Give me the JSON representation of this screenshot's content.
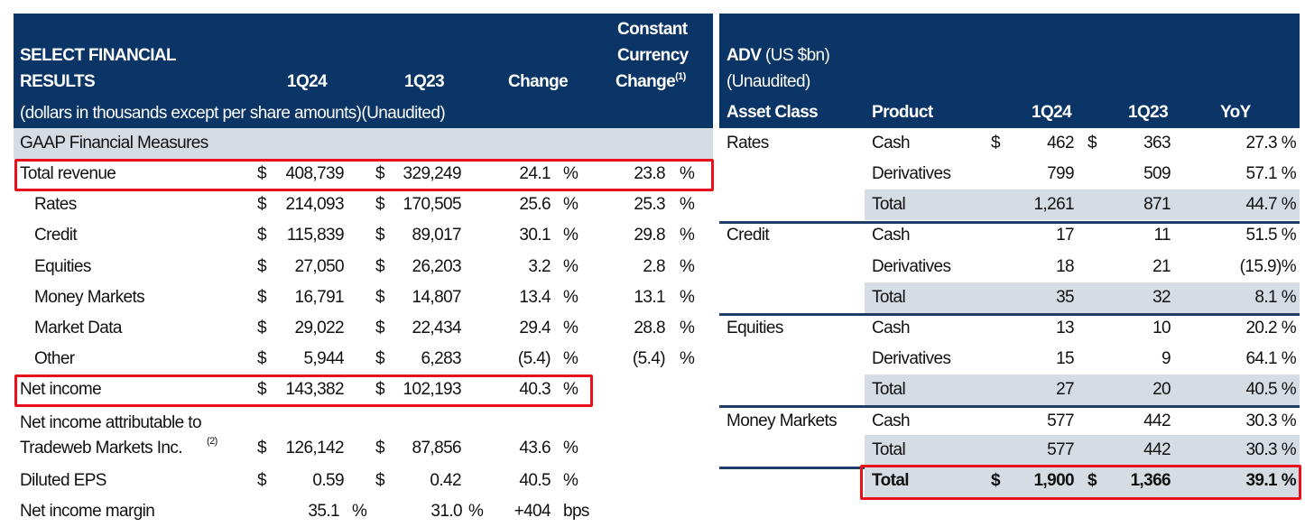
{
  "colors": {
    "header_bg": "#0b3566",
    "band_bg": "#d6dce4",
    "highlight": "#e8101a",
    "rule": "#1f3d66"
  },
  "left": {
    "title_line1": "SELECT FINANCIAL",
    "title_line2": "RESULTS",
    "col_1q24": "1Q24",
    "col_1q23": "1Q23",
    "col_change": "Change",
    "col_cc_line1": "Constant",
    "col_cc_line2": "Currency",
    "col_cc_line3": "Change",
    "col_cc_footnote": "(1)",
    "subtitle": "(dollars in thousands except per share amounts)(Unaudited)",
    "section": "GAAP Financial Measures",
    "rows": [
      {
        "label": "Total revenue",
        "indent": false,
        "d1": "$",
        "v1": "408,739",
        "d2": "$",
        "v2": "329,249",
        "chg": "24.1",
        "chg_unit": "%",
        "cc": "23.8",
        "cc_unit": "%",
        "highlight": true
      },
      {
        "label": "Rates",
        "indent": true,
        "d1": "$",
        "v1": "214,093",
        "d2": "$",
        "v2": "170,505",
        "chg": "25.6",
        "chg_unit": "%",
        "cc": "25.3",
        "cc_unit": "%"
      },
      {
        "label": "Credit",
        "indent": true,
        "d1": "$",
        "v1": "115,839",
        "d2": "$",
        "v2": "89,017",
        "chg": "30.1",
        "chg_unit": "%",
        "cc": "29.8",
        "cc_unit": "%"
      },
      {
        "label": "Equities",
        "indent": true,
        "d1": "$",
        "v1": "27,050",
        "d2": "$",
        "v2": "26,203",
        "chg": "3.2",
        "chg_unit": "%",
        "cc": "2.8",
        "cc_unit": "%"
      },
      {
        "label": "Money Markets",
        "indent": true,
        "d1": "$",
        "v1": "16,791",
        "d2": "$",
        "v2": "14,807",
        "chg": "13.4",
        "chg_unit": "%",
        "cc": "13.1",
        "cc_unit": "%"
      },
      {
        "label": "Market Data",
        "indent": true,
        "d1": "$",
        "v1": "29,022",
        "d2": "$",
        "v2": "22,434",
        "chg": "29.4",
        "chg_unit": "%",
        "cc": "28.8",
        "cc_unit": "%"
      },
      {
        "label": "Other",
        "indent": true,
        "d1": "$",
        "v1": "5,944",
        "d2": "$",
        "v2": "6,283",
        "chg": "(5.4)",
        "chg_unit": "%",
        "cc": "(5.4)",
        "cc_unit": "%"
      },
      {
        "label": "Net income",
        "indent": false,
        "d1": "$",
        "v1": "143,382",
        "d2": "$",
        "v2": "102,193",
        "chg": "40.3",
        "chg_unit": "%",
        "highlight": true
      },
      {
        "label": "Net income attributable to",
        "label2": "Tradeweb Markets Inc.",
        "footnote": "(2)",
        "indent": false,
        "d1": "$",
        "v1": "126,142",
        "d2": "$",
        "v2": "87,856",
        "chg": "43.6",
        "chg_unit": "%"
      },
      {
        "label": "Diluted EPS",
        "indent": false,
        "d1": "$",
        "v1": "0.59",
        "d2": "$",
        "v2": "0.42",
        "chg": "40.5",
        "chg_unit": "%"
      },
      {
        "label": "Net income margin",
        "indent": false,
        "v1": "35.1",
        "v1_unit": "%",
        "v2": "31.0",
        "v2_unit": "%",
        "chg": "+404",
        "chg_unit": "bps"
      }
    ]
  },
  "right": {
    "title_bold": "ADV",
    "title_rest": " (US $bn)",
    "title_line2": "(Unaudited)",
    "col_asset": "Asset Class",
    "col_product": "Product",
    "col_1q24": "1Q24",
    "col_1q23": "1Q23",
    "col_yoy": "YoY",
    "groups": [
      {
        "asset_class": "Rates",
        "rows": [
          {
            "product": "Cash",
            "d1": "$",
            "v1": "462",
            "d2": "$",
            "v2": "363",
            "yoy": "27.3 %"
          },
          {
            "product": "Derivatives",
            "v1": "799",
            "v2": "509",
            "yoy": "57.1 %"
          },
          {
            "product": "Total",
            "v1": "1,261",
            "v2": "871",
            "yoy": "44.7 %",
            "total": true
          }
        ]
      },
      {
        "asset_class": "Credit",
        "rows": [
          {
            "product": "Cash",
            "v1": "17",
            "v2": "11",
            "yoy": "51.5 %"
          },
          {
            "product": "Derivatives",
            "v1": "18",
            "v2": "21",
            "yoy": "(15.9)%"
          },
          {
            "product": "Total",
            "v1": "35",
            "v2": "32",
            "yoy": "8.1 %",
            "total": true
          }
        ]
      },
      {
        "asset_class": "Equities",
        "rows": [
          {
            "product": "Cash",
            "v1": "13",
            "v2": "10",
            "yoy": "20.2 %"
          },
          {
            "product": "Derivatives",
            "v1": "15",
            "v2": "9",
            "yoy": "64.1 %"
          },
          {
            "product": "Total",
            "v1": "27",
            "v2": "20",
            "yoy": "40.5 %",
            "total": true
          }
        ]
      },
      {
        "asset_class": "Money Markets",
        "rows": [
          {
            "product": "Cash",
            "v1": "577",
            "v2": "442",
            "yoy": "30.3 %"
          },
          {
            "product": "Total",
            "v1": "577",
            "v2": "442",
            "yoy": "30.3 %",
            "total": true
          }
        ]
      }
    ],
    "grand_total": {
      "product": "Total",
      "d1": "$",
      "v1": "1,900",
      "d2": "$",
      "v2": "1,366",
      "yoy": "39.1 %",
      "highlight": true
    }
  }
}
